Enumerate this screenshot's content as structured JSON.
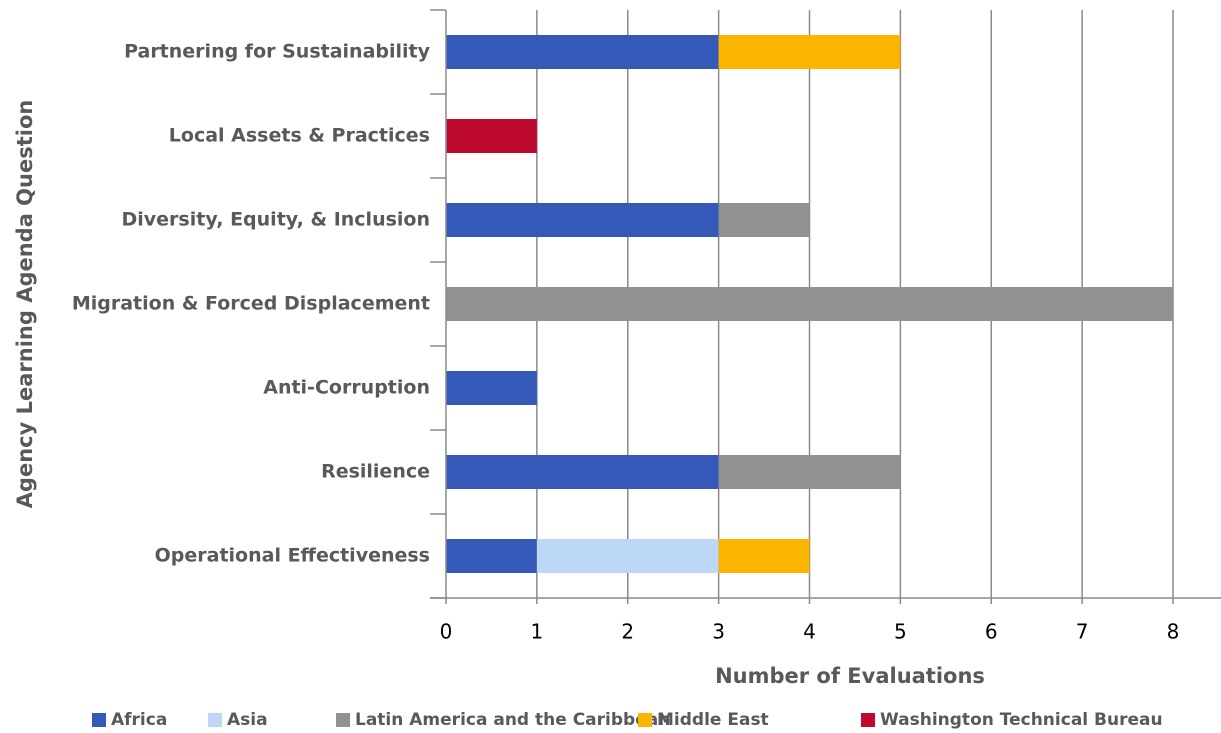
{
  "chart_data": {
    "type": "stacked_barh",
    "xlabel": "Number of Evaluations",
    "ylabel": "Agency Learning Agenda Question",
    "categories": [
      "Partnering for Sustainability",
      "Local Assets & Practices",
      "Diversity, Equity, & Inclusion",
      "Migration & Forced Displacement",
      "Anti-Corruption",
      "Resilience",
      "Operational Effectiveness"
    ],
    "series": [
      {
        "name": "Africa",
        "color": "#3459b8",
        "values": [
          3,
          0,
          3,
          0,
          1,
          3,
          1
        ]
      },
      {
        "name": "Asia",
        "color": "#bdd7f7",
        "values": [
          0,
          0,
          0,
          0,
          0,
          0,
          2
        ]
      },
      {
        "name": "Latin America and the Caribbean",
        "color": "#919191",
        "values": [
          0,
          0,
          1,
          8,
          0,
          2,
          0
        ]
      },
      {
        "name": "Middle East",
        "color": "#fbb400",
        "values": [
          2,
          0,
          0,
          0,
          0,
          0,
          1
        ]
      },
      {
        "name": "Washington Technical Bureau",
        "color": "#bf0a30",
        "values": [
          0,
          1,
          0,
          0,
          0,
          0,
          0
        ]
      }
    ],
    "xlim": [
      0,
      8
    ],
    "xticks": [
      0,
      1,
      2,
      3,
      4,
      5,
      6,
      7,
      8
    ],
    "grid": true,
    "legend": "bottom"
  }
}
